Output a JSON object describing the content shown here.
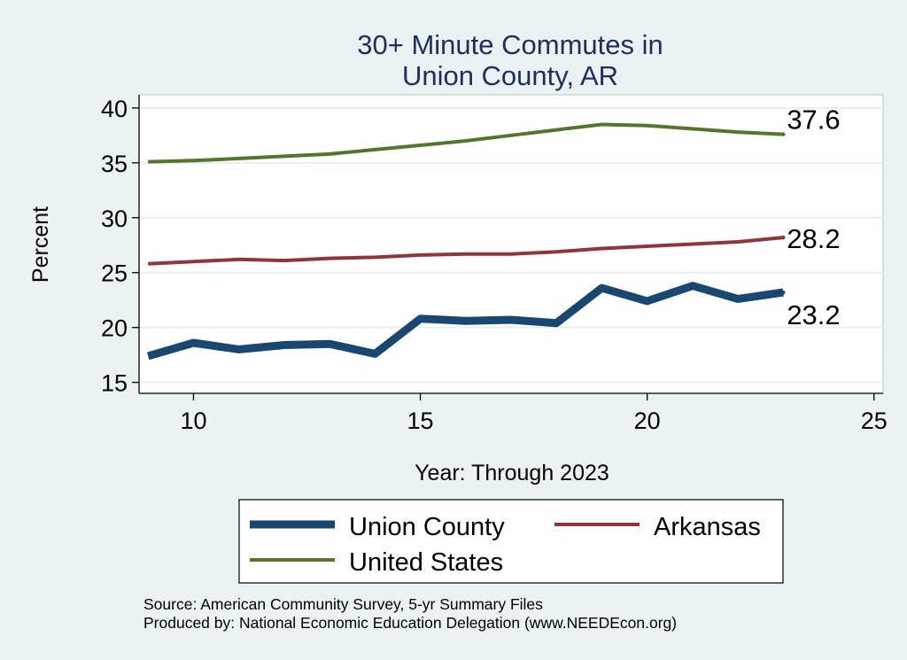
{
  "chart_data": {
    "type": "line",
    "title": [
      "30+ Minute Commutes in",
      "Union County, AR"
    ],
    "xlabel": "Year: Through 2023",
    "ylabel": "Percent",
    "xlim": [
      8.8,
      25.2
    ],
    "ylim": [
      14.0,
      41.2
    ],
    "xticks": [
      10,
      15,
      20,
      25
    ],
    "yticks": [
      15,
      20,
      25,
      30,
      35,
      40
    ],
    "grid": true,
    "series": [
      {
        "name": "Union County",
        "color": "#1a476f",
        "x": [
          9,
          10,
          11,
          12,
          13,
          14,
          15,
          16,
          17,
          18,
          19,
          20,
          21,
          22,
          23
        ],
        "values": [
          17.4,
          18.6,
          18.0,
          18.4,
          18.5,
          17.6,
          20.8,
          20.6,
          20.7,
          20.4,
          23.6,
          22.4,
          23.8,
          22.6,
          23.2
        ],
        "end_label": "23.2"
      },
      {
        "name": "Arkansas",
        "color": "#90353b",
        "x": [
          9,
          10,
          11,
          12,
          13,
          14,
          15,
          16,
          17,
          18,
          19,
          20,
          21,
          22,
          23
        ],
        "values": [
          25.8,
          26.0,
          26.2,
          26.1,
          26.3,
          26.4,
          26.6,
          26.7,
          26.7,
          26.9,
          27.2,
          27.4,
          27.6,
          27.8,
          28.2
        ],
        "end_label": "28.2"
      },
      {
        "name": "United States",
        "color": "#55752f",
        "x": [
          9,
          10,
          11,
          12,
          13,
          14,
          15,
          16,
          17,
          18,
          19,
          20,
          21,
          22,
          23
        ],
        "values": [
          35.1,
          35.2,
          35.4,
          35.6,
          35.8,
          36.2,
          36.6,
          37.0,
          37.5,
          38.0,
          38.5,
          38.4,
          38.1,
          37.8,
          37.6
        ],
        "end_label": "37.6"
      }
    ],
    "legend": {
      "placement": "bottom",
      "entries": [
        "Union County",
        "Arkansas",
        "United States"
      ]
    }
  },
  "footer": {
    "source": "Source: American Community Survey, 5-yr Summary Files",
    "produced_by": "Produced by: National Economic Education Delegation (www.NEEDEcon.org)"
  }
}
